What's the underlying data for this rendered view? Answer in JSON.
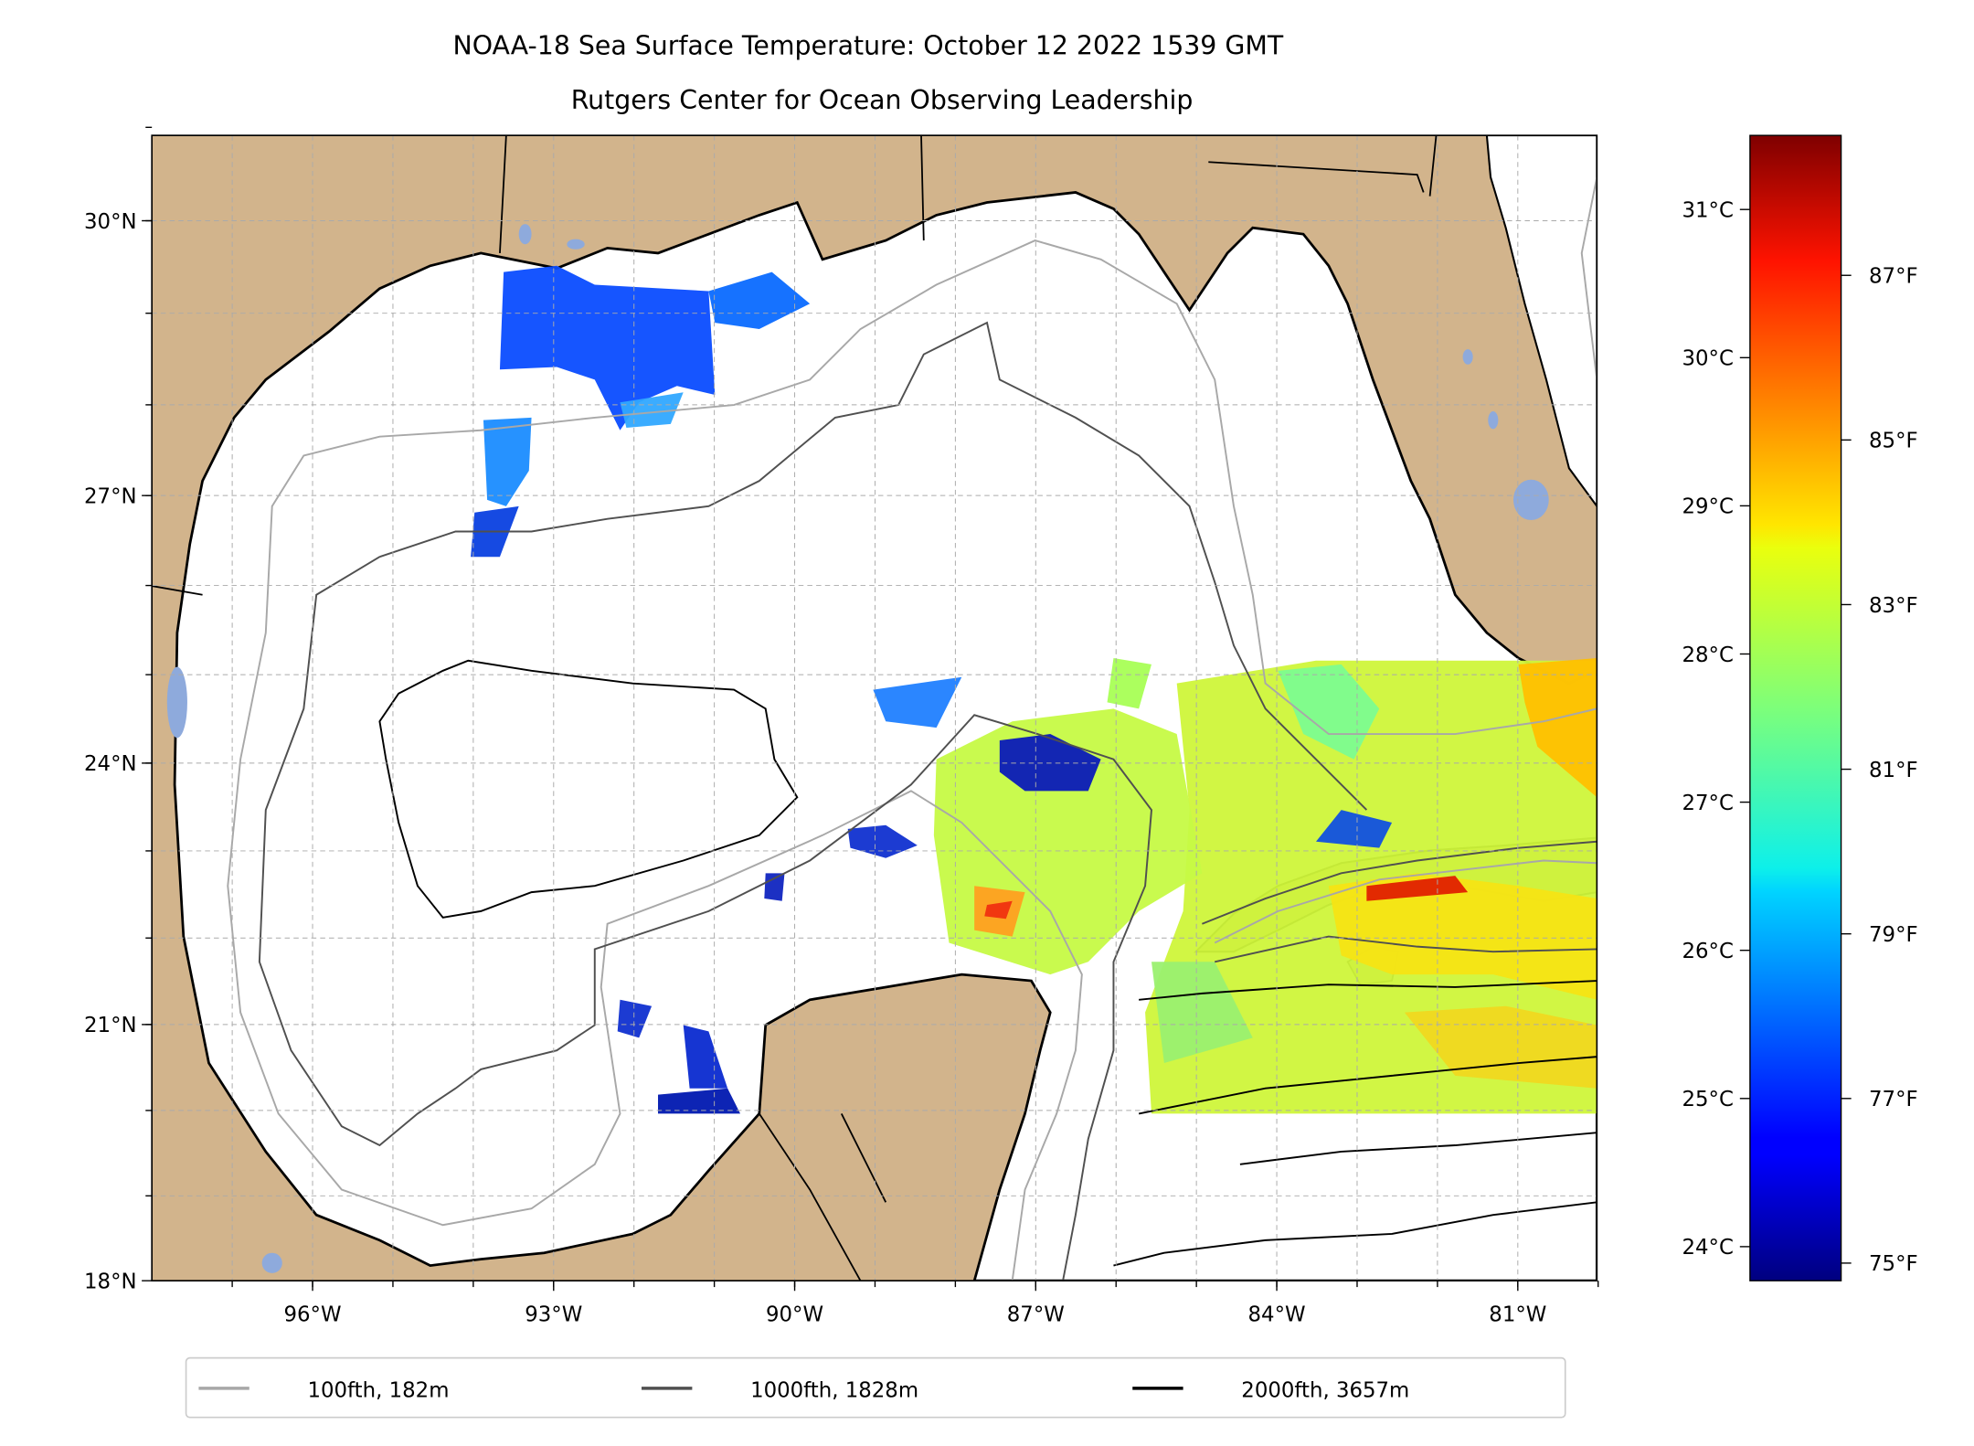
{
  "title": {
    "line1": "NOAA-18 Sea Surface Temperature: October 12 2022 1539 GMT",
    "line2": "Rutgers Center for Ocean Observing Leadership"
  },
  "map": {
    "lon_range": [
      -98,
      -80
    ],
    "lat_range": [
      18,
      31
    ],
    "gridlines": "dashed, every 1 degree",
    "lat_ticks": [
      {
        "value": 30,
        "label": "30°N"
      },
      {
        "value": 27,
        "label": "27°N"
      },
      {
        "value": 24,
        "label": "24°N"
      },
      {
        "value": 21,
        "label": "21°N"
      },
      {
        "value": 18,
        "label": "18°N"
      }
    ],
    "lon_ticks": [
      {
        "value": -96,
        "label": "96°W"
      },
      {
        "value": -93,
        "label": "93°W"
      },
      {
        "value": -90,
        "label": "90°W"
      },
      {
        "value": -87,
        "label": "87°W"
      },
      {
        "value": -84,
        "label": "84°W"
      },
      {
        "value": -81,
        "label": "81°W"
      }
    ],
    "land_color": "#d2b48c",
    "lake_color": "#8eaadc"
  },
  "colorbar": {
    "colormap": "jet",
    "range_c": [
      23.77,
      31.5
    ],
    "celsius_ticks": [
      {
        "value": 31,
        "label": "31°C"
      },
      {
        "value": 30,
        "label": "30°C"
      },
      {
        "value": 29,
        "label": "29°C"
      },
      {
        "value": 28,
        "label": "28°C"
      },
      {
        "value": 27,
        "label": "27°C"
      },
      {
        "value": 26,
        "label": "26°C"
      },
      {
        "value": 25,
        "label": "25°C"
      },
      {
        "value": 24,
        "label": "24°C"
      }
    ],
    "fahrenheit_ticks": [
      {
        "value": 87,
        "label": "87°F"
      },
      {
        "value": 85,
        "label": "85°F"
      },
      {
        "value": 83,
        "label": "83°F"
      },
      {
        "value": 81,
        "label": "81°F"
      },
      {
        "value": 79,
        "label": "79°F"
      },
      {
        "value": 77,
        "label": "77°F"
      },
      {
        "value": 75,
        "label": "75°F"
      }
    ]
  },
  "legend": {
    "location": "bottom-center",
    "entries": [
      {
        "label": "100fth, 182m",
        "color": "#a8a8a8"
      },
      {
        "label": "1000fth, 1828m",
        "color": "#505050"
      },
      {
        "label": "2000fth, 3657m",
        "color": "#000000"
      }
    ]
  }
}
